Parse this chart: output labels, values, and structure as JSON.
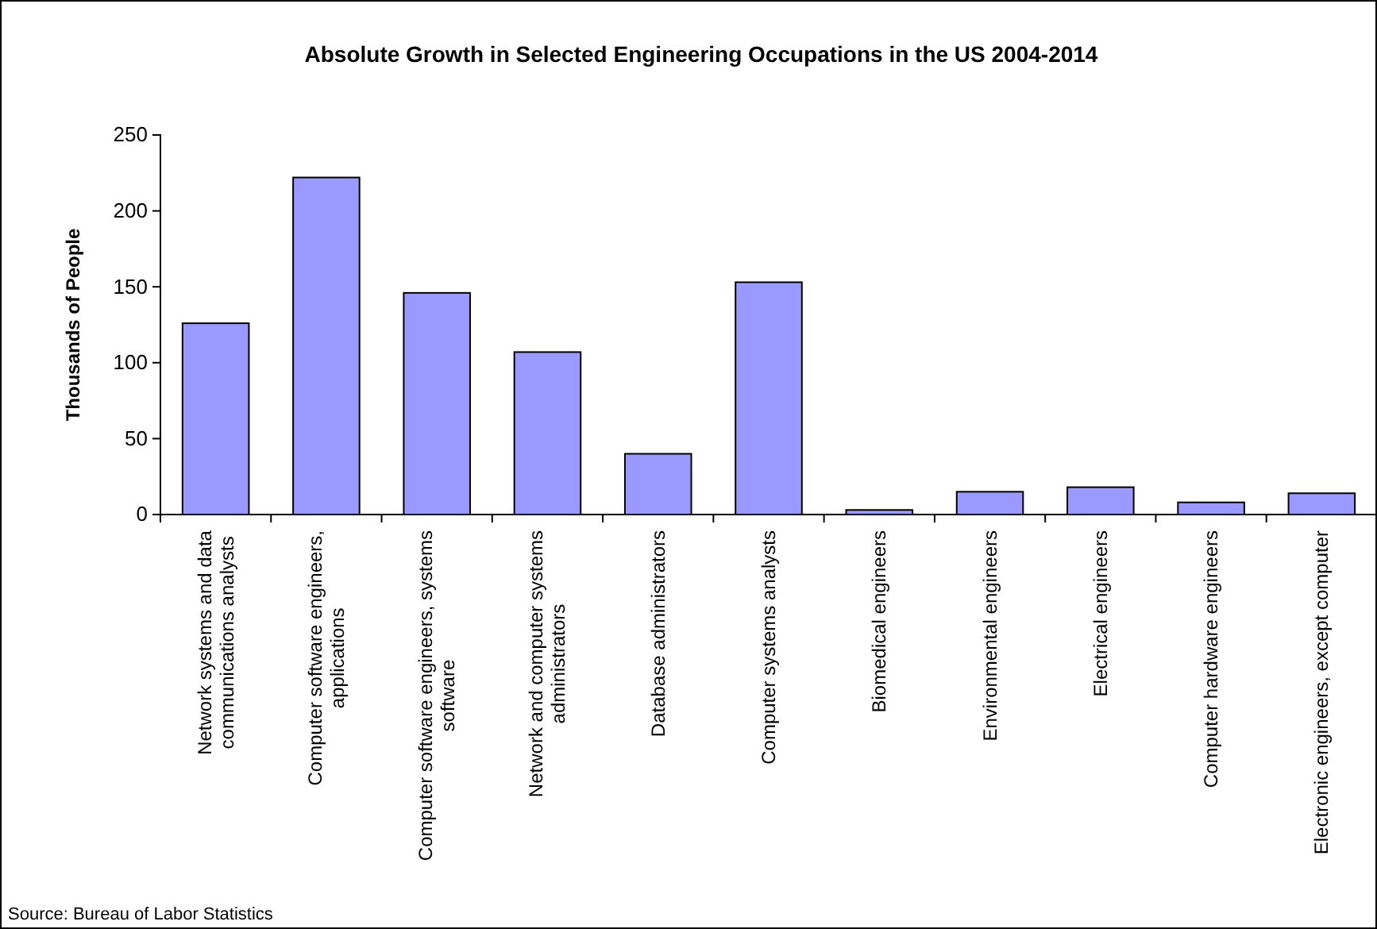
{
  "chart_data": {
    "type": "bar",
    "title": "Absolute Growth in Selected Engineering Occupations in the US 2004-2014",
    "ylabel": "Thousands of People",
    "categories": [
      "Network systems and data communications analysts",
      "Computer software engineers, applications",
      "Computer software engineers, systems software",
      "Network and computer systems administrators",
      "Database administrators",
      "Computer systems analysts",
      "Biomedical engineers",
      "Environmental engineers",
      "Electrical engineers",
      "Computer hardware engineers",
      "Electronic engineers, except computer"
    ],
    "values": [
      126,
      222,
      146,
      107,
      40,
      153,
      3,
      15,
      18,
      8,
      14
    ],
    "color": "#9999ff",
    "ylim": [
      0,
      250
    ],
    "yticks": [
      0,
      50,
      100,
      150,
      200,
      250
    ],
    "grid": false,
    "annotations": [
      "Source: Bureau of Labor Statistics"
    ]
  }
}
